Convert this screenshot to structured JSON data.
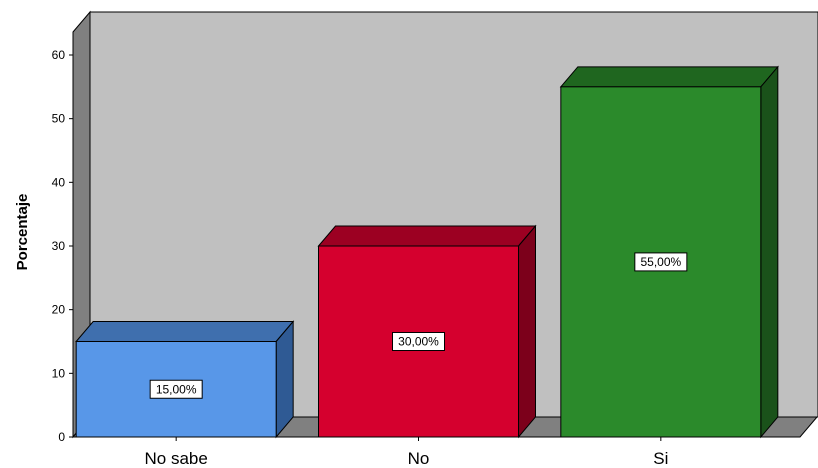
{
  "chart_data": {
    "type": "bar",
    "style": "3d",
    "title": "",
    "xlabel": "",
    "ylabel": "Porcentaje",
    "ylim": [
      0,
      60
    ],
    "yticks": [
      "0",
      "10",
      "20",
      "30",
      "40",
      "50",
      "60"
    ],
    "grid": false,
    "legend": "none",
    "categories": [
      "No sabe",
      "No",
      "Si"
    ],
    "values": [
      15,
      30,
      55
    ],
    "data_labels": [
      "15,00%",
      "30,00%",
      "55,00%"
    ],
    "colors": {
      "front": [
        "#5897e8",
        "#d5002e",
        "#2b8a2b"
      ],
      "top": [
        "#3f6fae",
        "#9c0022",
        "#1f661f"
      ],
      "side": [
        "#2f5a94",
        "#7c001b",
        "#1a521a"
      ],
      "back_wall": "#c0c0c0",
      "left_wall": "#808080",
      "floor": "#808080"
    }
  }
}
